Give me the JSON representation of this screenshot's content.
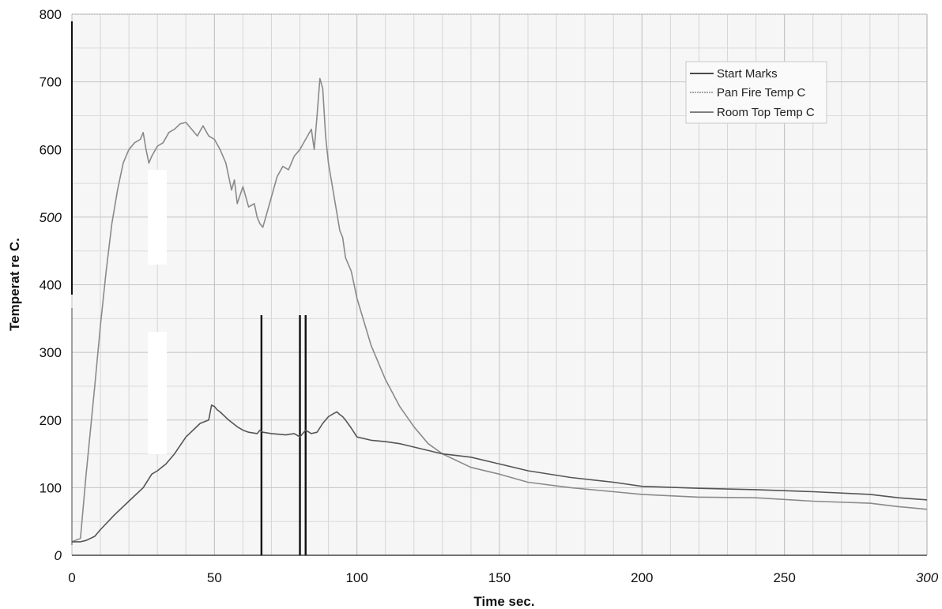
{
  "chart_data": {
    "type": "line",
    "title": "",
    "xlabel": "Time sec.",
    "ylabel": "Temperat re C.",
    "xlim": [
      0,
      300
    ],
    "ylim": [
      0,
      800
    ],
    "x_ticks": [
      "0",
      "50",
      "100",
      "150",
      "200",
      "250",
      "300"
    ],
    "y_ticks": [
      "0",
      "100",
      "200",
      "300",
      "400",
      "500",
      "600",
      "700",
      "800"
    ],
    "grid": true,
    "legend_position": "top-right",
    "series": [
      {
        "name": "Start Marks",
        "color": "#111111",
        "type": "vertical-marks",
        "x": [
          66.5,
          80,
          82
        ],
        "top": 355
      },
      {
        "name": "Pan Fire Temp C",
        "color": "#8a8a8a",
        "x": [
          0,
          3,
          5,
          8,
          10,
          12,
          14,
          16,
          18,
          20,
          22,
          24,
          25,
          26,
          27,
          28,
          30,
          32,
          34,
          36,
          38,
          40,
          42,
          44,
          46,
          48,
          50,
          52,
          54,
          55,
          56,
          57,
          58,
          60,
          62,
          64,
          65,
          66,
          67,
          68,
          70,
          72,
          74,
          76,
          78,
          80,
          82,
          84,
          85,
          86,
          87,
          88,
          89,
          90,
          92,
          94,
          95,
          96,
          98,
          100,
          105,
          110,
          115,
          120,
          125,
          130,
          140,
          150,
          160,
          175,
          190,
          200,
          220,
          240,
          260,
          280,
          290,
          300
        ],
        "values": [
          20,
          25,
          120,
          250,
          340,
          420,
          490,
          540,
          580,
          600,
          610,
          615,
          625,
          600,
          580,
          590,
          605,
          610,
          625,
          630,
          638,
          640,
          630,
          620,
          635,
          620,
          615,
          600,
          580,
          560,
          540,
          555,
          520,
          545,
          515,
          520,
          500,
          490,
          485,
          500,
          530,
          560,
          575,
          570,
          590,
          600,
          615,
          630,
          600,
          650,
          705,
          690,
          620,
          580,
          530,
          480,
          470,
          440,
          420,
          380,
          310,
          260,
          220,
          190,
          165,
          150,
          130,
          120,
          108,
          100,
          94,
          90,
          86,
          85,
          80,
          77,
          72,
          68
        ]
      },
      {
        "name": "Room Top Temp C",
        "color": "#555555",
        "x": [
          0,
          3,
          5,
          8,
          10,
          15,
          20,
          25,
          28,
          30,
          33,
          36,
          40,
          45,
          48,
          49,
          50,
          51,
          52,
          55,
          58,
          60,
          62,
          65,
          66,
          67,
          70,
          75,
          78,
          80,
          82,
          84,
          86,
          88,
          90,
          92,
          93,
          94,
          95,
          96,
          98,
          100,
          105,
          110,
          115,
          120,
          130,
          140,
          150,
          160,
          175,
          190,
          200,
          220,
          240,
          260,
          280,
          290,
          300
        ],
        "values": [
          20,
          20,
          22,
          28,
          38,
          60,
          80,
          100,
          120,
          125,
          135,
          150,
          175,
          195,
          200,
          222,
          220,
          215,
          212,
          200,
          190,
          185,
          182,
          180,
          185,
          182,
          180,
          178,
          180,
          175,
          185,
          180,
          182,
          195,
          205,
          210,
          212,
          208,
          205,
          200,
          188,
          175,
          170,
          168,
          165,
          160,
          150,
          145,
          135,
          125,
          115,
          108,
          102,
          99,
          97,
          94,
          90,
          85,
          82
        ]
      }
    ]
  }
}
